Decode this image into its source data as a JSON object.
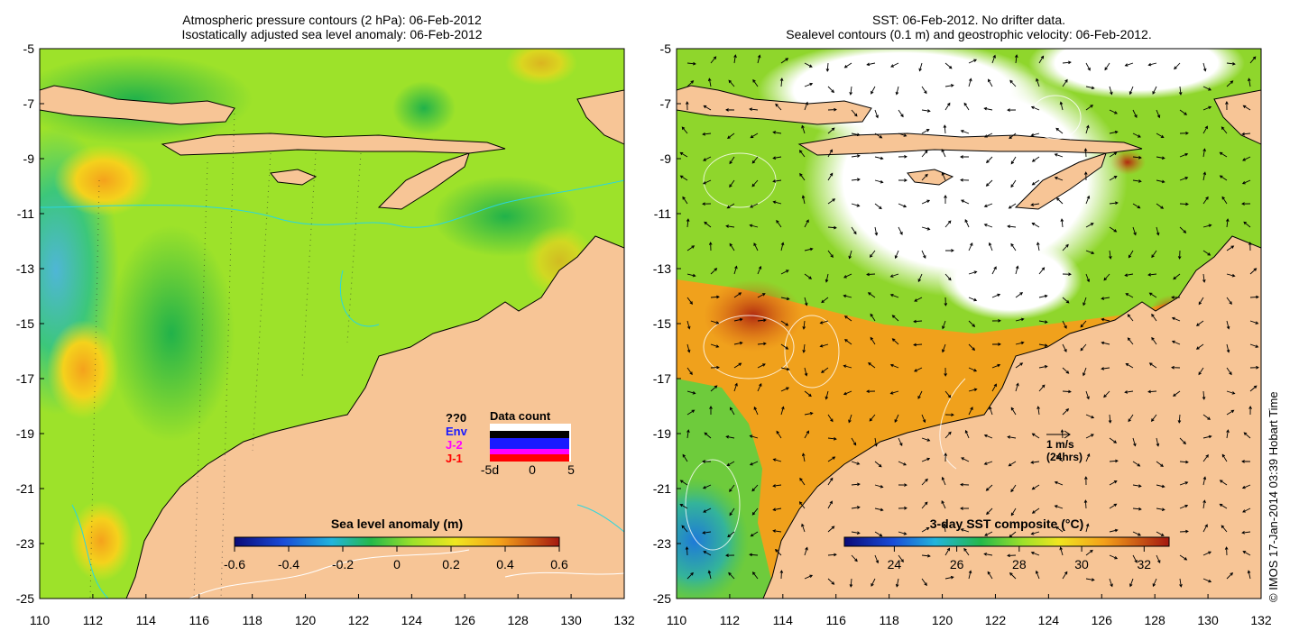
{
  "left_panel": {
    "title_line1": "Atmospheric pressure contours (2 hPa): 06-Feb-2012",
    "title_line2": "Isostatically adjusted sea level anomaly: 06-Feb-2012",
    "colorbar": {
      "label": "Sea level anomaly (m)",
      "ticks": [
        "-0.6",
        "-0.4",
        "-0.2",
        "0",
        "0.2",
        "0.4",
        "0.6"
      ],
      "range": [
        -0.6,
        0.6
      ]
    },
    "data_count": {
      "title": "Data count",
      "legend": [
        {
          "label": "??0",
          "color": "#000000"
        },
        {
          "label": "Env",
          "color": "#1a1aff"
        },
        {
          "label": "J-2",
          "color": "#ff00ff"
        },
        {
          "label": "J-1",
          "color": "#ff0000"
        }
      ],
      "axis_labels": [
        "-5d",
        "0",
        "5"
      ]
    }
  },
  "right_panel": {
    "title_line1": "SST: 06-Feb-2012. No drifter data.",
    "title_line2": "Sealevel contours (0.1 m) and geostrophic velocity: 06-Feb-2012.",
    "colorbar": {
      "label": "3-day SST composite (°C)",
      "ticks": [
        "24",
        "26",
        "28",
        "30",
        "32"
      ],
      "range": [
        22.4,
        32.8
      ]
    },
    "velocity_scale": {
      "speed": "1 m/s",
      "duration": "(24hrs)"
    }
  },
  "axes": {
    "x_ticks": [
      "110",
      "112",
      "114",
      "116",
      "118",
      "120",
      "122",
      "124",
      "126",
      "128",
      "130",
      "132"
    ],
    "y_ticks": [
      "-5",
      "-7",
      "-9",
      "-11",
      "-13",
      "-15",
      "-17",
      "-19",
      "-21",
      "-23",
      "-25"
    ],
    "lon_range": [
      110,
      132
    ],
    "lat_range": [
      -25,
      -5
    ]
  },
  "credit": "© IMOS 17-Jan-2014 03:39 Hobart Time",
  "colors": {
    "land": "#f7c596",
    "ocean_ssla": "#9de22a",
    "ocean_sst": "#f0a11c",
    "cloud": "#ffffff"
  }
}
